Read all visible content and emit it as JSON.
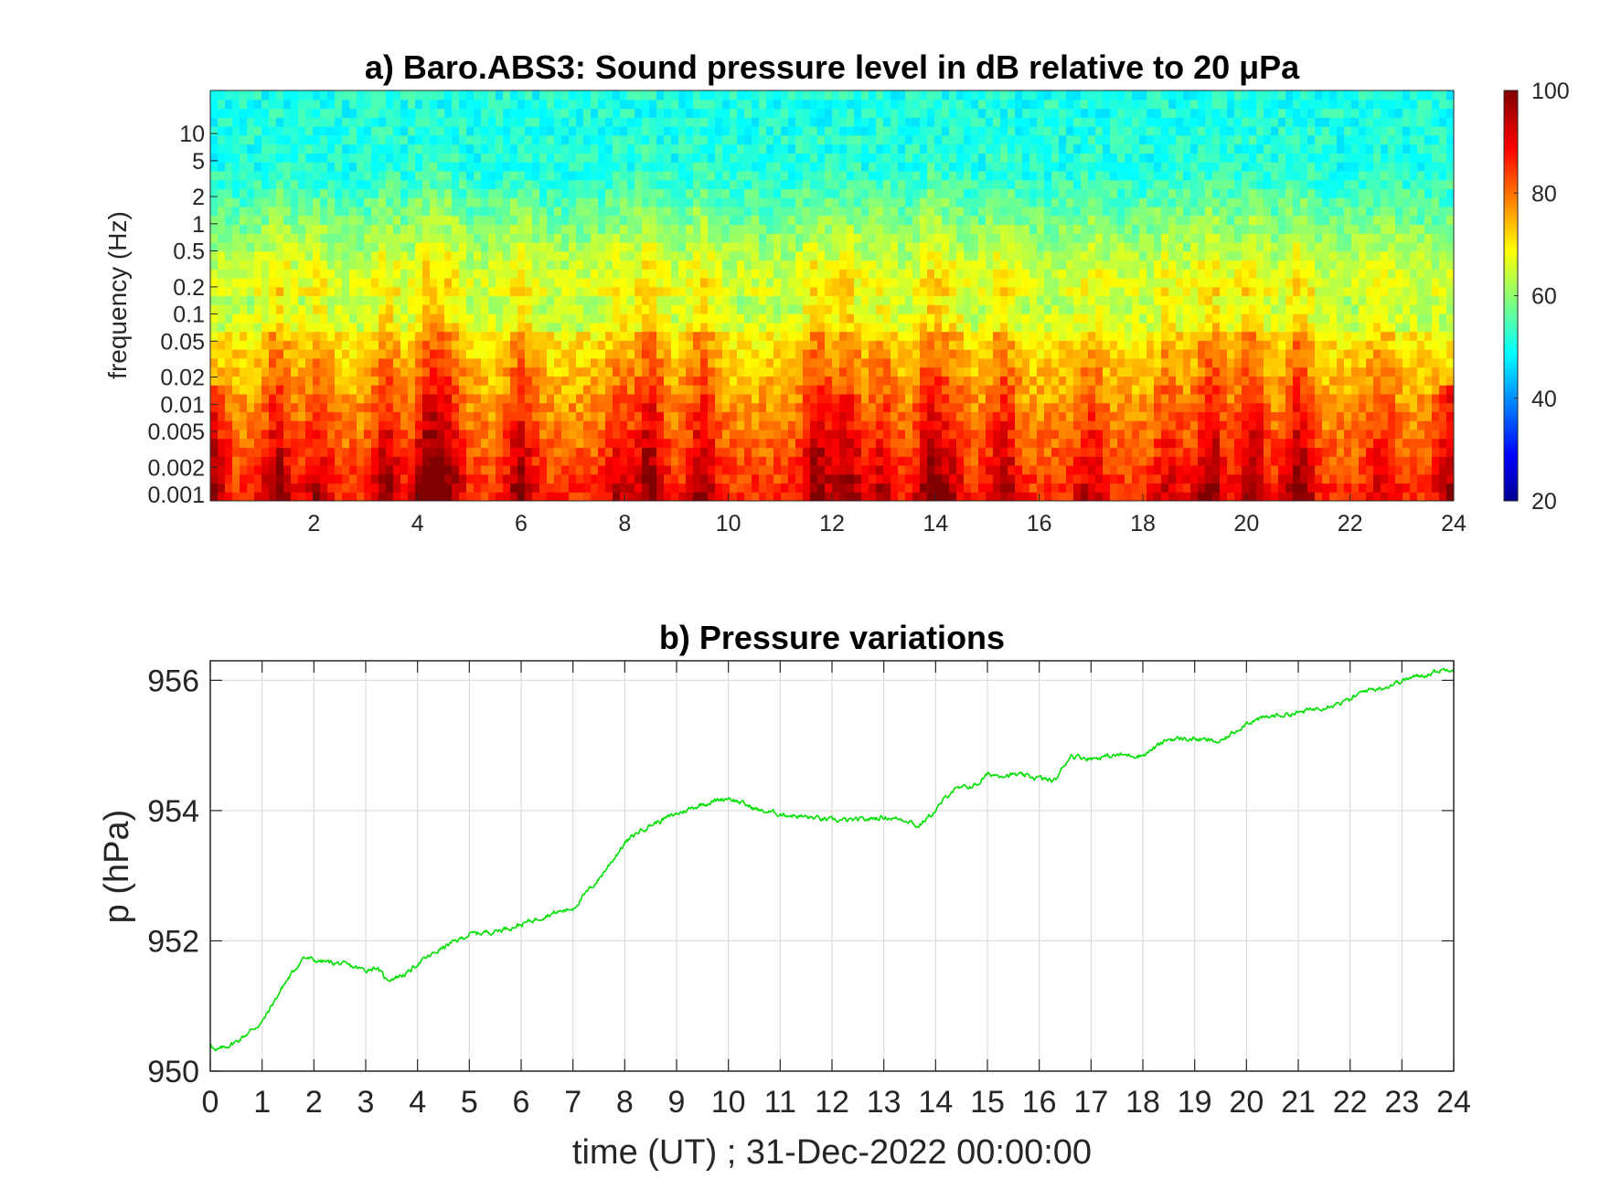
{
  "chart_data": [
    {
      "type": "heatmap",
      "title": "a) Baro.ABS3: Sound pressure level in dB relative to 20 μPa",
      "ylabel": "frequency (Hz)",
      "xlabel": "",
      "yscale": "log",
      "xlim": [
        0,
        24
      ],
      "ylim": [
        0.00085,
        30
      ],
      "x_ticks": [
        "2",
        "4",
        "6",
        "8",
        "10",
        "12",
        "14",
        "16",
        "18",
        "20",
        "22",
        "24"
      ],
      "y_ticks": [
        "10",
        "5",
        "2",
        "1",
        "0.5",
        "0.2",
        "0.1",
        "0.05",
        "0.02",
        "0.01",
        "0.005",
        "0.002",
        "0.001"
      ],
      "colorbar": {
        "colormap": "jet",
        "range": [
          20,
          100
        ],
        "ticks": [
          "100",
          "80",
          "60",
          "40",
          "20"
        ]
      }
    },
    {
      "type": "line",
      "title": "b) Pressure variations",
      "xlabel": "time (UT) ; 31-Dec-2022 00:00:00",
      "ylabel": "p (hPa)",
      "xlim": [
        0,
        24
      ],
      "ylim": [
        950,
        956.3
      ],
      "grid": true,
      "x_ticks": [
        "0",
        "1",
        "2",
        "3",
        "4",
        "5",
        "6",
        "7",
        "8",
        "9",
        "10",
        "11",
        "12",
        "13",
        "14",
        "15",
        "16",
        "17",
        "18",
        "19",
        "20",
        "21",
        "22",
        "23",
        "24"
      ],
      "y_ticks": [
        "950",
        "952",
        "954",
        "956"
      ],
      "series": [
        {
          "color": "#00e000",
          "x": [
            0,
            0.1,
            0.5,
            1.0,
            1.4,
            1.8,
            2.0,
            2.5,
            3.0,
            3.2,
            3.4,
            3.8,
            4.0,
            4.5,
            5.0,
            5.5,
            6.0,
            6.5,
            7.0,
            7.5,
            8.0,
            8.3,
            8.7,
            9.0,
            9.5,
            10.0,
            10.3,
            10.6,
            11.0,
            11.5,
            12.0,
            12.5,
            13.0,
            13.5,
            13.65,
            14.0,
            14.3,
            14.8,
            15.0,
            15.5,
            16.0,
            16.3,
            16.6,
            17.0,
            17.5,
            18.0,
            18.5,
            19.0,
            19.5,
            20.0,
            20.5,
            21.0,
            21.5,
            22.0,
            22.3,
            22.7,
            23.0,
            23.5,
            24.0
          ],
          "y": [
            950.45,
            950.3,
            950.45,
            950.75,
            951.3,
            951.75,
            951.7,
            951.65,
            951.55,
            951.6,
            951.4,
            951.5,
            951.65,
            951.9,
            952.1,
            952.15,
            952.25,
            952.4,
            952.5,
            952.95,
            953.5,
            953.7,
            953.85,
            953.95,
            954.1,
            954.2,
            954.1,
            954.0,
            953.95,
            953.9,
            953.85,
            953.85,
            953.9,
            953.85,
            953.75,
            954.0,
            954.3,
            954.4,
            954.55,
            954.55,
            954.5,
            954.45,
            954.85,
            954.8,
            954.85,
            954.85,
            955.1,
            955.1,
            955.05,
            955.35,
            955.45,
            955.5,
            955.6,
            955.7,
            955.85,
            955.9,
            956.0,
            956.1,
            956.2
          ]
        }
      ]
    }
  ]
}
